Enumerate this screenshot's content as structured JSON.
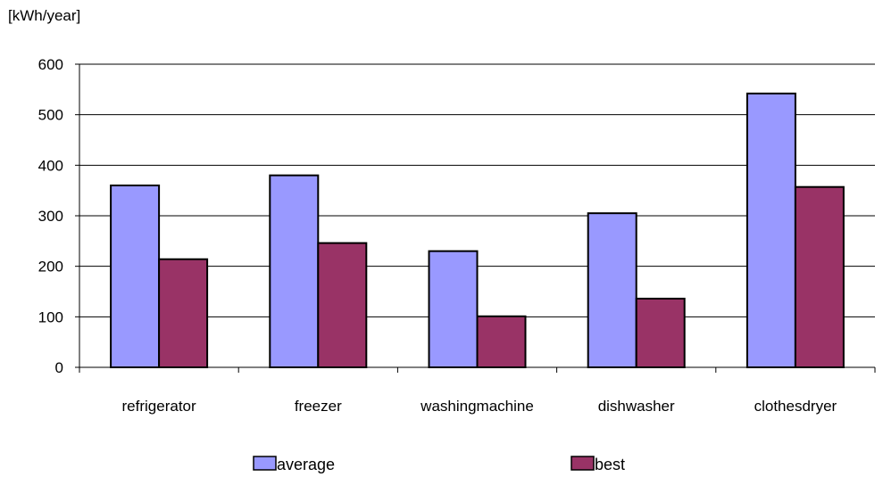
{
  "chart_data": {
    "type": "bar",
    "unit_label": "[kWh/year]",
    "categories": [
      "refrigerator",
      "freezer",
      "washingmachine",
      "dishwasher",
      "clothesdryer"
    ],
    "series": [
      {
        "name": "average",
        "values": [
          360,
          380,
          230,
          305,
          542
        ],
        "color": "#9999ff"
      },
      {
        "name": "best",
        "values": [
          214,
          246,
          101,
          136,
          357
        ],
        "color": "#993366"
      }
    ],
    "ylim": [
      0,
      600
    ],
    "yticks": [
      0,
      100,
      200,
      300,
      400,
      500,
      600
    ],
    "grid": true,
    "legend_position": "bottom"
  }
}
